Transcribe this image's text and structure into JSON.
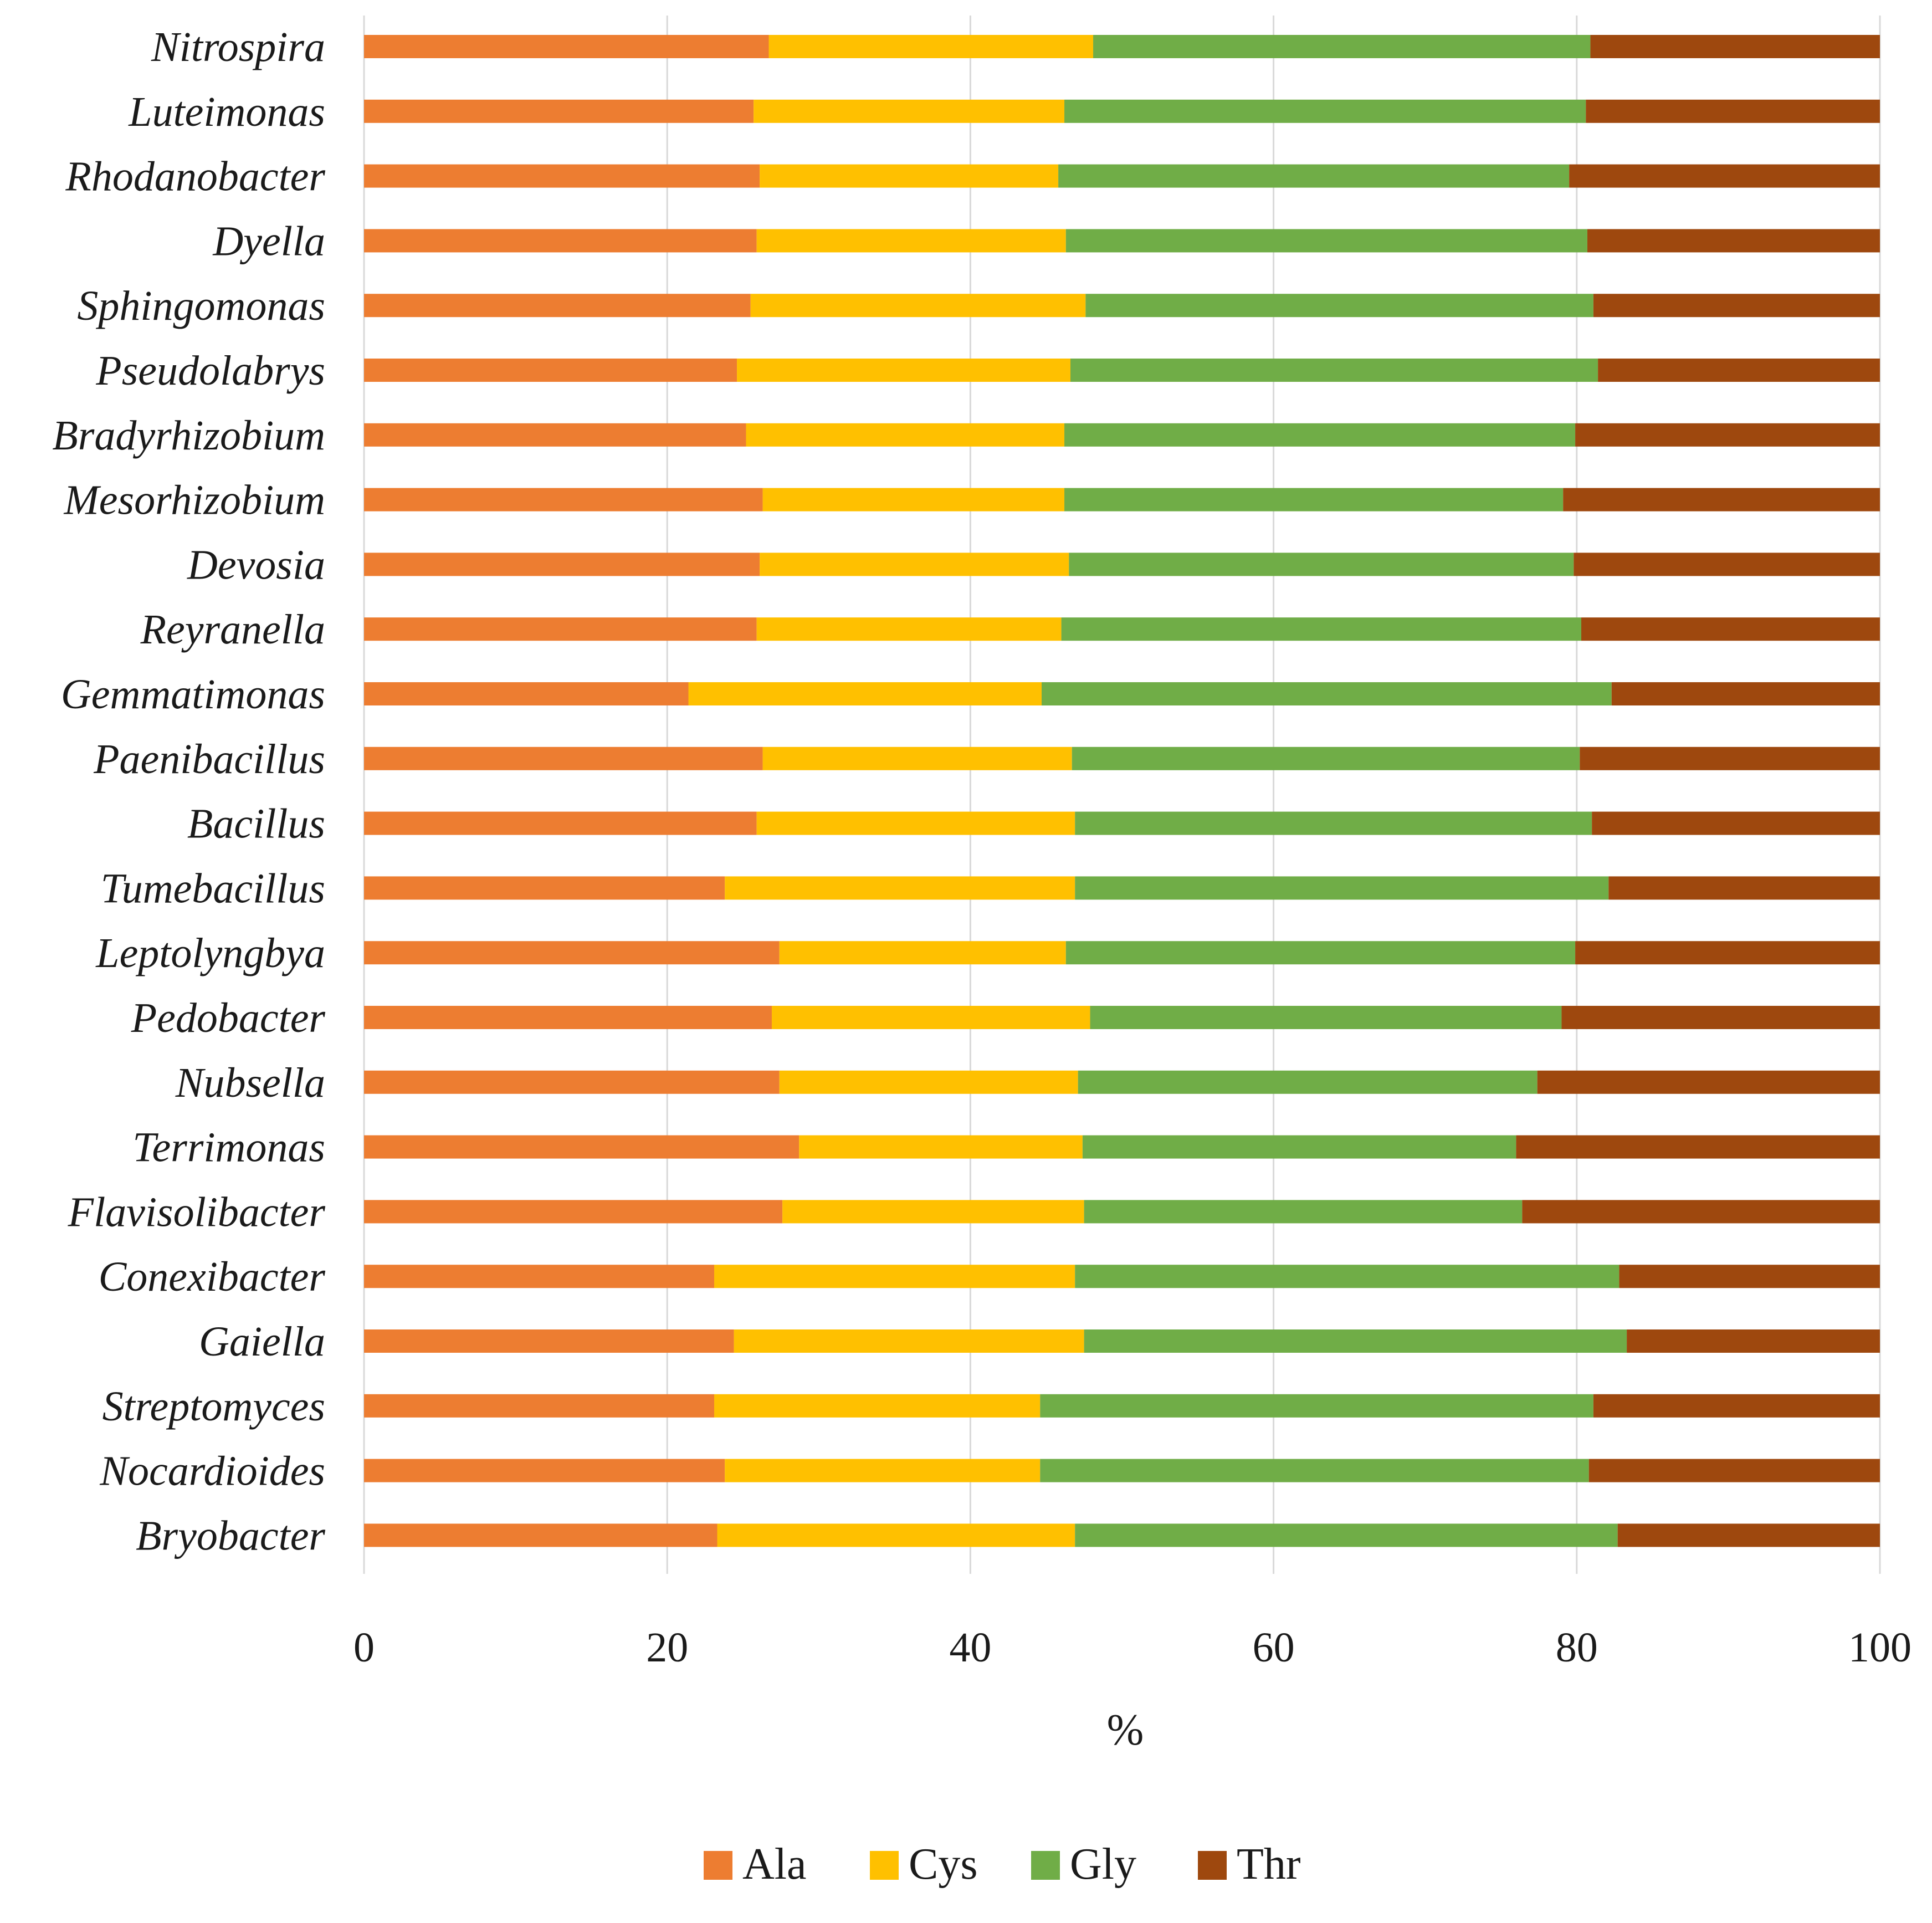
{
  "chart_data": {
    "type": "bar",
    "orientation": "horizontal",
    "stacked": true,
    "title": "",
    "xlabel": "%",
    "ylabel": "",
    "xlim": [
      0,
      100
    ],
    "xticks": [
      0,
      20,
      40,
      60,
      80,
      100
    ],
    "grid": true,
    "legend_position": "bottom",
    "categories": [
      "Nitrospira",
      "Luteimonas",
      "Rhodanobacter",
      "Dyella",
      "Sphingomonas",
      "Pseudolabrys",
      "Bradyrhizobium",
      "Mesorhizobium",
      "Devosia",
      "Reyranella",
      "Gemmatimonas",
      "Paenibacillus",
      "Bacillus",
      "Tumebacillus",
      "Leptolyngbya",
      "Pedobacter",
      "Nubsella",
      "Terrimonas",
      "Flavisolibacter",
      "Conexibacter",
      "Gaiella",
      "Streptomyces",
      "Nocardioides",
      "Bryobacter"
    ],
    "series": [
      {
        "name": "Ala",
        "color": "#ED7D31",
        "values": [
          26.7,
          25.7,
          26.1,
          25.9,
          25.5,
          24.6,
          25.2,
          26.3,
          26.1,
          25.9,
          21.4,
          26.3,
          25.9,
          23.8,
          27.4,
          26.9,
          27.4,
          28.7,
          27.6,
          23.1,
          24.4,
          23.1,
          23.8,
          23.3
        ]
      },
      {
        "name": "Cys",
        "color": "#FFC000",
        "values": [
          21.4,
          20.5,
          19.7,
          20.4,
          22.1,
          22.0,
          21.0,
          19.9,
          20.4,
          20.1,
          23.3,
          20.4,
          21.0,
          23.1,
          18.9,
          21.0,
          19.7,
          18.7,
          19.9,
          23.8,
          23.1,
          21.5,
          20.8,
          23.6
        ]
      },
      {
        "name": "Gly",
        "color": "#70AD47",
        "values": [
          32.8,
          34.4,
          33.7,
          34.4,
          33.5,
          34.8,
          33.7,
          32.9,
          33.3,
          34.3,
          37.6,
          33.5,
          34.1,
          35.2,
          33.6,
          31.1,
          30.3,
          28.6,
          28.9,
          35.9,
          35.8,
          36.5,
          36.2,
          35.8
        ]
      },
      {
        "name": "Thr",
        "color": "#9E480E",
        "values": [
          19.1,
          19.4,
          20.5,
          19.3,
          18.9,
          18.6,
          20.1,
          20.9,
          20.2,
          19.7,
          17.7,
          19.8,
          19.0,
          17.9,
          20.1,
          21.0,
          22.6,
          24.0,
          23.6,
          17.2,
          16.7,
          18.9,
          19.2,
          17.3
        ]
      }
    ]
  }
}
